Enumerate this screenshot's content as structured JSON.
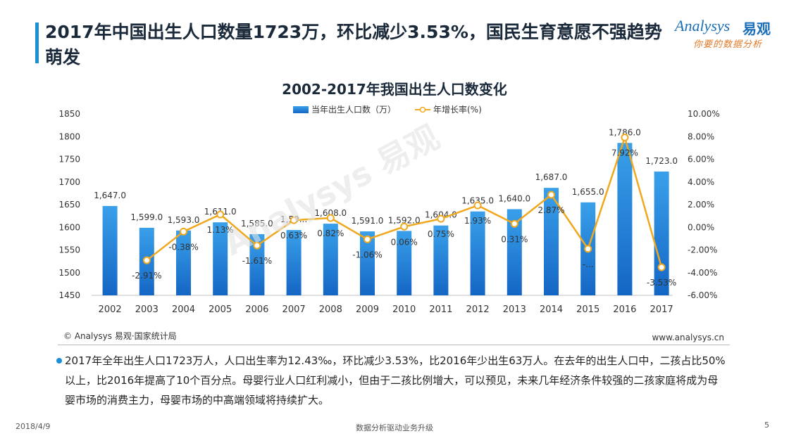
{
  "header": {
    "title": "2017年中国出生人口数量1723万，环比减少3.53%，国民生育意愿不强趋势萌发"
  },
  "logo": {
    "brand_en": "Analysys",
    "brand_cn": "易观",
    "tagline": "你要的数据分析"
  },
  "watermark": "Analysys 易观",
  "chart_data": {
    "type": "bar",
    "title": "2002-2017年我国出生人口数变化",
    "categories": [
      "2002",
      "2003",
      "2004",
      "2005",
      "2006",
      "2007",
      "2008",
      "2009",
      "2010",
      "2011",
      "2012",
      "2013",
      "2014",
      "2015",
      "2016",
      "2017"
    ],
    "series": [
      {
        "name": "当年出生人口数（万）",
        "type": "bar",
        "axis": "left",
        "values": [
          1647.0,
          1599.0,
          1593.0,
          1611.0,
          1585.0,
          1594.0,
          1608.0,
          1591.0,
          1592.0,
          1604.0,
          1635.0,
          1640.0,
          1687.0,
          1655.0,
          1786.0,
          1723.0
        ],
        "labels": [
          "1,647.0",
          "1,599.0",
          "1,593.0",
          "1,611.0",
          "1,585.0",
          "1,59...",
          "1,608.0",
          "1,591.0",
          "1,592.0",
          "1,604.0",
          "1,635.0",
          "1,640.0",
          "1,687.0",
          "1,655.0",
          "1,786.0",
          "1,723.0"
        ]
      },
      {
        "name": "年增长率(%)",
        "type": "line",
        "axis": "right",
        "values": [
          null,
          -2.91,
          -0.38,
          1.13,
          -1.61,
          0.63,
          0.82,
          -1.06,
          0.06,
          0.75,
          1.93,
          0.31,
          2.87,
          -1.9,
          7.92,
          -3.53
        ],
        "labels": [
          "",
          "-2.91%",
          "-0.38%",
          "1.13%",
          "-1.61%",
          "0.63%",
          "0.82%",
          "-1.06%",
          "0.06%",
          "0.75%",
          "1.93%",
          "0.31%",
          "2.87%",
          "-...",
          "7.92%",
          "-3.53%"
        ]
      }
    ],
    "y_left": {
      "min": 1450,
      "max": 1850,
      "step": 50,
      "ticks": [
        "1450",
        "1500",
        "1550",
        "1600",
        "1650",
        "1700",
        "1750",
        "1800",
        "1850"
      ]
    },
    "y_right": {
      "min": -6,
      "max": 10,
      "step": 2,
      "ticks": [
        "-6.00%",
        "-4.00%",
        "-2.00%",
        "0.00%",
        "2.00%",
        "4.00%",
        "6.00%",
        "8.00%",
        "10.00%"
      ]
    },
    "legend_position": "top-center",
    "grid": false,
    "colors": {
      "bar_top": "#3aa0ea",
      "bar_bottom": "#1466c4",
      "line": "#f0a81e",
      "marker_fill": "#ffffff"
    }
  },
  "source": "© Analysys 易观·国家统计局",
  "website": "www.analysys.cn",
  "summary": "2017年全年出生人口1723万人，人口出生率为12.43‰，环比减少3.53%，比2016年少出生63万人。在去年的出生人口中，二孩占比50%以上，比2016年提高了10个百分点。母婴行业人口红利减小，但由于二孩比例增大，可以预见，未来几年经济条件较强的二孩家庭将成为母婴市场的消费主力，母婴市场的中高端领域将持续扩大。",
  "footer": {
    "date": "2018/4/9",
    "center": "数据分析驱动业务升级",
    "page": "5"
  }
}
